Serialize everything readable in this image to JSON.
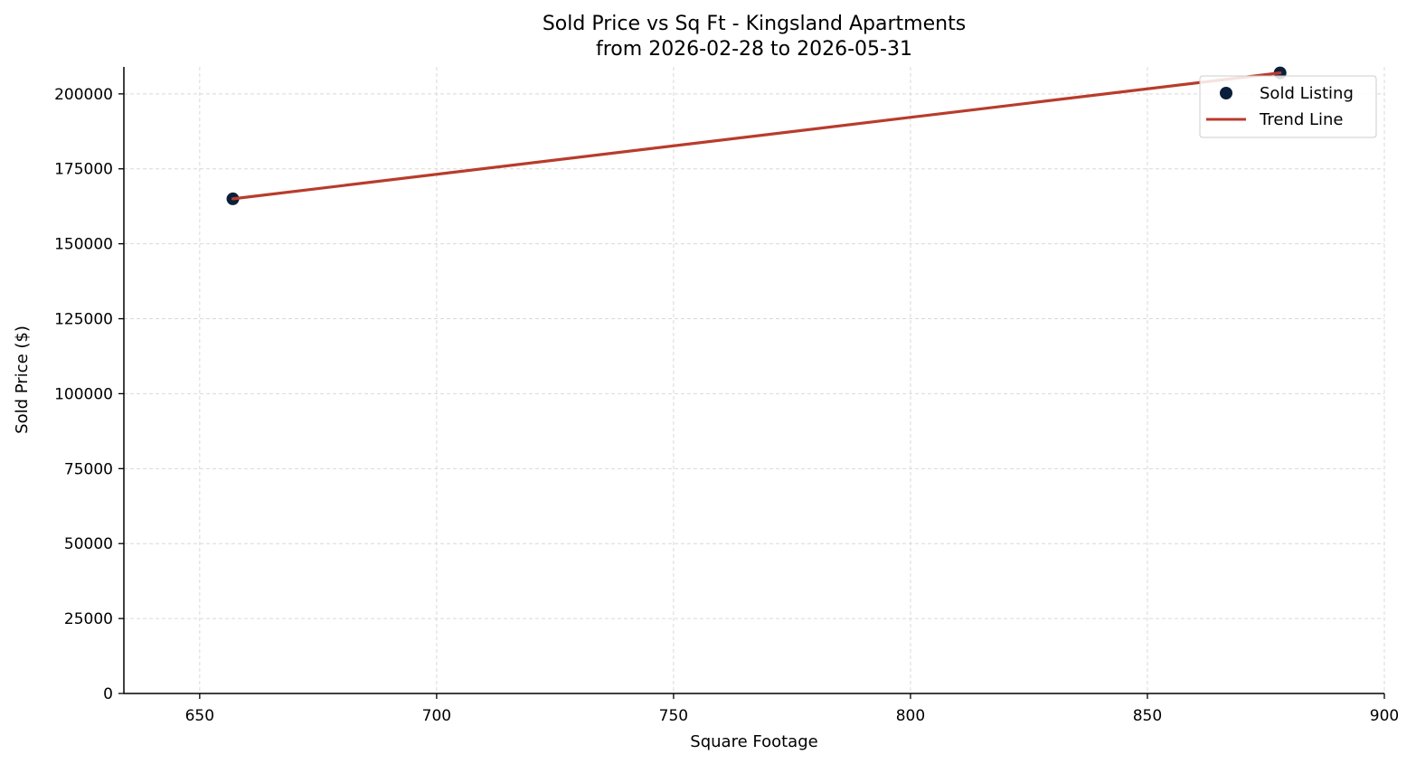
{
  "chart_data": {
    "type": "scatter",
    "title": "Sold Price vs Sq Ft - Kingsland Apartments",
    "subtitle": "from 2026-02-28 to 2026-05-31",
    "xlabel": "Square Footage",
    "ylabel": "Sold Price ($)",
    "xlim": [
      634,
      900
    ],
    "ylim": [
      0,
      209000
    ],
    "xticks": [
      650,
      700,
      750,
      800,
      850,
      900
    ],
    "yticks": [
      0,
      25000,
      50000,
      75000,
      100000,
      125000,
      150000,
      175000,
      200000
    ],
    "grid": true,
    "legend_position": "top-right",
    "series": [
      {
        "name": "Sold Listing",
        "kind": "scatter",
        "color": "#0b1f3a",
        "points": [
          {
            "x": 657,
            "y": 165000
          },
          {
            "x": 878,
            "y": 207000
          }
        ]
      },
      {
        "name": "Trend Line",
        "kind": "line",
        "color": "#b83c2c",
        "points": [
          {
            "x": 657,
            "y": 165000
          },
          {
            "x": 878,
            "y": 207000
          }
        ]
      }
    ]
  }
}
